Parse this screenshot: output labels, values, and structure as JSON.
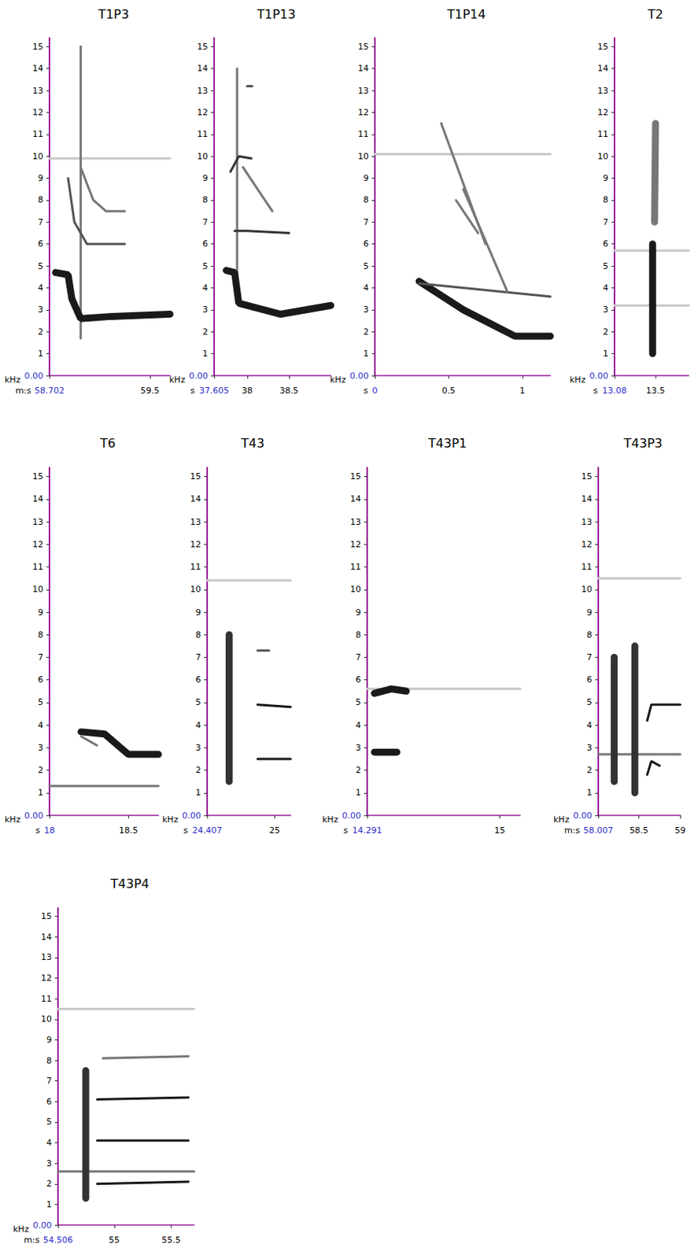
{
  "chart_data": [
    {
      "type": "line",
      "title": "T1P3",
      "x_label": "m:s",
      "y_label": "kHz",
      "xlim": [
        58.702,
        59.66
      ],
      "xticks": [
        {
          "value": 58.702,
          "label": "58.702"
        },
        59.5
      ],
      "ylim": [
        0,
        15.4
      ],
      "yticks": [
        {
          "value": 0,
          "label": "0.00"
        },
        1,
        2,
        3,
        4,
        5,
        6,
        7,
        8,
        9,
        10,
        11,
        12,
        13,
        14,
        15
      ],
      "grid": false,
      "series": [
        {
          "color": "#c8c8c8",
          "line_style": "solid",
          "x": [
            58.702,
            59.66
          ],
          "values": [
            9.9,
            9.9
          ]
        },
        {
          "color": "#777777",
          "line_style": "solid",
          "x": [
            58.95,
            58.95
          ],
          "values": [
            1.7,
            15
          ]
        },
        {
          "color": "#1a1a1a",
          "line_style": "thick",
          "x": [
            58.75,
            58.85,
            58.88,
            58.95,
            59.2,
            59.66
          ],
          "values": [
            4.7,
            4.6,
            3.5,
            2.6,
            2.7,
            2.8
          ]
        },
        {
          "color": "#555555",
          "line_style": "solid",
          "x": [
            58.85,
            58.9,
            59.0,
            59.15,
            59.3
          ],
          "values": [
            9,
            7,
            6,
            6,
            6
          ]
        },
        {
          "color": "#777777",
          "line_style": "solid",
          "x": [
            58.95,
            59.05,
            59.15,
            59.3
          ],
          "values": [
            9.5,
            8,
            7.5,
            7.5
          ]
        }
      ]
    },
    {
      "type": "line",
      "title": "T1P13",
      "x_label": "s",
      "y_label": "kHz",
      "xlim": [
        37.605,
        39.0
      ],
      "xticks": [
        {
          "value": 37.605,
          "label": "37.605"
        },
        38,
        38.5
      ],
      "ylim": [
        0,
        15.4
      ],
      "yticks": [
        {
          "value": 0,
          "label": "0.00"
        },
        1,
        2,
        3,
        4,
        5,
        6,
        7,
        8,
        9,
        10,
        11,
        12,
        13,
        14,
        15
      ],
      "grid": false,
      "series": [
        {
          "color": "#777777",
          "line_style": "solid",
          "x": [
            37.88,
            37.88
          ],
          "values": [
            3.3,
            14
          ]
        },
        {
          "color": "#1a1a1a",
          "line_style": "thick",
          "x": [
            37.75,
            37.85,
            37.9,
            38.2,
            38.4,
            39.0
          ],
          "values": [
            4.8,
            4.7,
            3.3,
            3.0,
            2.8,
            3.2
          ]
        },
        {
          "color": "#333333",
          "line_style": "solid",
          "x": [
            37.85,
            38.0,
            38.5
          ],
          "values": [
            6.6,
            6.6,
            6.5
          ]
        },
        {
          "color": "#333333",
          "line_style": "solid",
          "x": [
            37.8,
            37.9,
            38.05
          ],
          "values": [
            9.3,
            10,
            9.9
          ]
        },
        {
          "color": "#777777",
          "line_style": "solid",
          "x": [
            37.95,
            38.3
          ],
          "values": [
            9.5,
            7.5
          ]
        },
        {
          "color": "#555555",
          "line_style": "solid",
          "x": [
            38.0,
            38.06
          ],
          "values": [
            13.2,
            13.2
          ]
        }
      ]
    },
    {
      "type": "line",
      "title": "T1P14",
      "x_label": "s",
      "y_label": "kHz",
      "xlim": [
        0,
        1.19
      ],
      "xticks": [
        0,
        0.5,
        1
      ],
      "ylim": [
        0,
        15.4
      ],
      "yticks": [
        {
          "value": 0,
          "label": "0.00"
        },
        1,
        2,
        3,
        4,
        5,
        6,
        7,
        8,
        9,
        10,
        11,
        12,
        13,
        14,
        15
      ],
      "grid": false,
      "series": [
        {
          "color": "#c8c8c8",
          "line_style": "solid",
          "x": [
            0,
            1.19
          ],
          "values": [
            10.1,
            10.1
          ]
        },
        {
          "color": "#1a1a1a",
          "line_style": "thick",
          "x": [
            0.3,
            0.6,
            0.95,
            1.19
          ],
          "values": [
            4.3,
            3.0,
            1.8,
            1.8
          ]
        },
        {
          "color": "#555555",
          "line_style": "solid",
          "x": [
            0.3,
            1.19
          ],
          "values": [
            4.2,
            3.6
          ]
        },
        {
          "color": "#777777",
          "line_style": "solid",
          "x": [
            0.45,
            0.75
          ],
          "values": [
            11.5,
            6
          ]
        },
        {
          "color": "#777777",
          "line_style": "solid",
          "x": [
            0.6,
            0.9
          ],
          "values": [
            8.5,
            3.8
          ]
        },
        {
          "color": "#777777",
          "line_style": "solid",
          "x": [
            0.55,
            0.7
          ],
          "values": [
            8,
            6.5
          ]
        }
      ]
    },
    {
      "type": "line",
      "title": "T2",
      "x_label": "s",
      "y_label": "kHz",
      "xlim": [
        13.08,
        13.84
      ],
      "xticks": [
        {
          "value": 13.08,
          "label": "13.08"
        },
        13.5
      ],
      "ylim": [
        0,
        15.4
      ],
      "yticks": [
        {
          "value": 0,
          "label": "0.00"
        },
        1,
        2,
        3,
        4,
        5,
        6,
        7,
        8,
        9,
        10,
        11,
        12,
        13,
        14,
        15
      ],
      "grid": false,
      "series": [
        {
          "color": "#c8c8c8",
          "line_style": "solid",
          "x": [
            13.08,
            13.84
          ],
          "values": [
            3.2,
            3.2
          ]
        },
        {
          "color": "#c8c8c8",
          "line_style": "solid",
          "x": [
            13.08,
            13.84
          ],
          "values": [
            5.7,
            5.7
          ]
        },
        {
          "color": "#1a1a1a",
          "line_style": "thick",
          "x": [
            13.47,
            13.47
          ],
          "values": [
            1,
            6
          ]
        },
        {
          "color": "#777777",
          "line_style": "thick",
          "x": [
            13.49,
            13.5
          ],
          "values": [
            7,
            11.5
          ]
        }
      ]
    },
    {
      "type": "line",
      "title": "T6",
      "x_label": "s",
      "y_label": "kHz",
      "xlim": [
        18,
        18.69
      ],
      "xticks": [
        18,
        18.5
      ],
      "ylim": [
        0,
        15.4
      ],
      "yticks": [
        {
          "value": 0,
          "label": "0.00"
        },
        1,
        2,
        3,
        4,
        5,
        6,
        7,
        8,
        9,
        10,
        11,
        12,
        13,
        14,
        15
      ],
      "grid": false,
      "series": [
        {
          "color": "#777777",
          "line_style": "solid",
          "x": [
            18,
            18.69
          ],
          "values": [
            1.3,
            1.3
          ]
        },
        {
          "color": "#1a1a1a",
          "line_style": "thick",
          "x": [
            18.2,
            18.35,
            18.5,
            18.69
          ],
          "values": [
            3.7,
            3.6,
            2.7,
            2.7
          ]
        },
        {
          "color": "#777777",
          "line_style": "solid",
          "x": [
            18.2,
            18.3
          ],
          "values": [
            3.5,
            3.1
          ]
        }
      ]
    },
    {
      "type": "line",
      "title": "T43",
      "x_label": "s",
      "y_label": "kHz",
      "xlim": [
        24.407,
        25.14
      ],
      "xticks": [
        {
          "value": 24.407,
          "label": "24.407"
        },
        25
      ],
      "ylim": [
        0,
        15.4
      ],
      "yticks": [
        {
          "value": 0,
          "label": "0.00"
        },
        1,
        2,
        3,
        4,
        5,
        6,
        7,
        8,
        9,
        10,
        11,
        12,
        13,
        14,
        15
      ],
      "grid": false,
      "series": [
        {
          "color": "#c8c8c8",
          "line_style": "solid",
          "x": [
            24.407,
            25.14
          ],
          "values": [
            10.4,
            10.4
          ]
        },
        {
          "color": "#333333",
          "line_style": "thick",
          "x": [
            24.6,
            24.6
          ],
          "values": [
            1.5,
            8
          ]
        },
        {
          "color": "#1a1a1a",
          "line_style": "solid",
          "x": [
            24.85,
            25.14
          ],
          "values": [
            4.9,
            4.8
          ]
        },
        {
          "color": "#1a1a1a",
          "line_style": "solid",
          "x": [
            24.85,
            25.14
          ],
          "values": [
            2.5,
            2.5
          ]
        },
        {
          "color": "#555555",
          "line_style": "solid",
          "x": [
            24.85,
            24.95
          ],
          "values": [
            7.3,
            7.3
          ]
        }
      ]
    },
    {
      "type": "line",
      "title": "T43P1",
      "x_label": "s",
      "y_label": "kHz",
      "xlim": [
        14.291,
        15.11
      ],
      "xticks": [
        {
          "value": 14.291,
          "label": "14.291"
        },
        15
      ],
      "ylim": [
        0,
        15.4
      ],
      "yticks": [
        {
          "value": 0,
          "label": "0.00"
        },
        1,
        2,
        3,
        4,
        5,
        6,
        7,
        8,
        9,
        10,
        11,
        12,
        13,
        14,
        15
      ],
      "grid": false,
      "series": [
        {
          "color": "#c8c8c8",
          "line_style": "solid",
          "x": [
            14.291,
            15.11
          ],
          "values": [
            5.6,
            5.6
          ]
        },
        {
          "color": "#1a1a1a",
          "line_style": "thick",
          "x": [
            14.33,
            14.42,
            14.5
          ],
          "values": [
            5.4,
            5.6,
            5.5
          ]
        },
        {
          "color": "#1a1a1a",
          "line_style": "thick",
          "x": [
            14.33,
            14.45
          ],
          "values": [
            2.8,
            2.8
          ]
        }
      ]
    },
    {
      "type": "line",
      "title": "T43P3",
      "x_label": "m:s",
      "y_label": "kHz",
      "xlim": [
        58.007,
        59.0
      ],
      "xticks": [
        {
          "value": 58.007,
          "label": "58.007"
        },
        58.5,
        59
      ],
      "ylim": [
        0,
        15.4
      ],
      "yticks": [
        {
          "value": 0,
          "label": "0.00"
        },
        1,
        2,
        3,
        4,
        5,
        6,
        7,
        8,
        9,
        10,
        11,
        12,
        13,
        14,
        15
      ],
      "grid": false,
      "series": [
        {
          "color": "#c8c8c8",
          "line_style": "solid",
          "x": [
            58.007,
            59.0
          ],
          "values": [
            10.5,
            10.5
          ]
        },
        {
          "color": "#777777",
          "line_style": "solid",
          "x": [
            58.007,
            59.0
          ],
          "values": [
            2.7,
            2.7
          ]
        },
        {
          "color": "#333333",
          "line_style": "thick",
          "x": [
            58.2,
            58.2
          ],
          "values": [
            1.5,
            7
          ]
        },
        {
          "color": "#333333",
          "line_style": "thick",
          "x": [
            58.45,
            58.45
          ],
          "values": [
            1,
            7.5
          ]
        },
        {
          "color": "#1a1a1a",
          "line_style": "solid",
          "x": [
            58.6,
            58.65,
            59.0
          ],
          "values": [
            4.2,
            4.9,
            4.9
          ]
        },
        {
          "color": "#1a1a1a",
          "line_style": "solid",
          "x": [
            58.6,
            58.65,
            58.75
          ],
          "values": [
            1.8,
            2.4,
            2.2
          ]
        }
      ]
    },
    {
      "type": "line",
      "title": "T43P4",
      "x_label": "m:s",
      "y_label": "kHz",
      "xlim": [
        54.506,
        55.7
      ],
      "xticks": [
        {
          "value": 54.506,
          "label": "54.506"
        },
        55,
        55.5
      ],
      "ylim": [
        0,
        15.4
      ],
      "yticks": [
        {
          "value": 0,
          "label": "0.00"
        },
        1,
        2,
        3,
        4,
        5,
        6,
        7,
        8,
        9,
        10,
        11,
        12,
        13,
        14,
        15
      ],
      "grid": false,
      "series": [
        {
          "color": "#c8c8c8",
          "line_style": "solid",
          "x": [
            54.506,
            55.7
          ],
          "values": [
            10.5,
            10.5
          ]
        },
        {
          "color": "#777777",
          "line_style": "solid",
          "x": [
            54.506,
            55.7
          ],
          "values": [
            2.6,
            2.6
          ]
        },
        {
          "color": "#333333",
          "line_style": "thick",
          "x": [
            54.75,
            54.75
          ],
          "values": [
            1.3,
            7.5
          ]
        },
        {
          "color": "#1a1a1a",
          "line_style": "solid",
          "x": [
            54.85,
            55.65
          ],
          "values": [
            2.0,
            2.1
          ]
        },
        {
          "color": "#1a1a1a",
          "line_style": "solid",
          "x": [
            54.85,
            55.65
          ],
          "values": [
            4.1,
            4.1
          ]
        },
        {
          "color": "#1a1a1a",
          "line_style": "solid",
          "x": [
            54.85,
            55.65
          ],
          "values": [
            6.1,
            6.2
          ]
        },
        {
          "color": "#777777",
          "line_style": "solid",
          "x": [
            54.9,
            55.65
          ],
          "values": [
            8.1,
            8.2
          ]
        }
      ]
    }
  ]
}
